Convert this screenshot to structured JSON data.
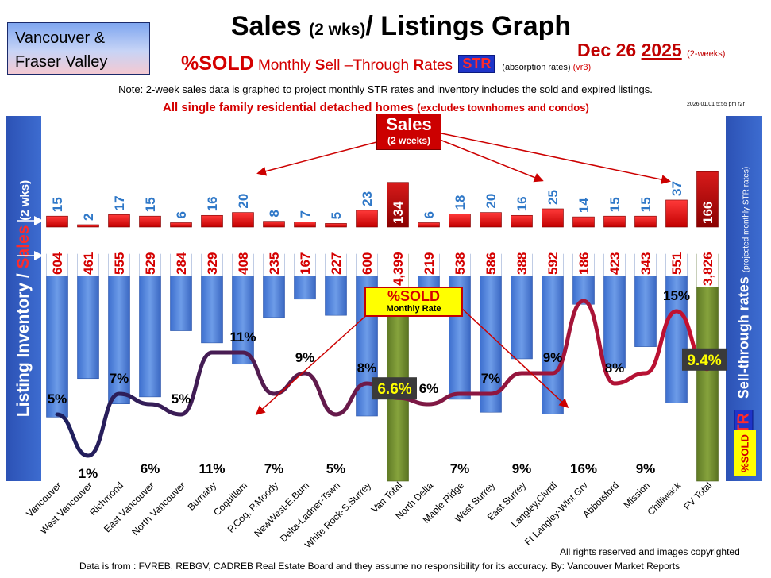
{
  "region": {
    "line1": "Vancouver &",
    "line2": "Fraser Valley"
  },
  "title": {
    "main": "Sales ",
    "period": "(2 wks)",
    "rest": "/ Listings Graph"
  },
  "subtitle": {
    "pct_sold": "%SOLD",
    "monthly": " Monthly ",
    "s": "S",
    "ell": "ell –",
    "t": "T",
    "hrough": "hrough ",
    "r": "R",
    "ates": "ates ",
    "str": "STR",
    "absorption": "(absorption rates)",
    "version": "(vr3)"
  },
  "date": {
    "main": "Dec 26 ",
    "year": "2025",
    "tag": "(2-weeks)"
  },
  "note": "Note: 2-week sales data is graphed to project monthly STR rates and inventory includes the sold and expired listings.",
  "headline": {
    "main": "All single family residential detached homes ",
    "sub": "(excludes townhomes and condos)"
  },
  "stamp": "2026.01.01 5:55 pm r2r",
  "left_axis": {
    "inventory": "Listing Inventory / ",
    "sales": "Sales",
    "period": "(2 wks)"
  },
  "right_axis": {
    "title": "Sell-through rates ",
    "sub": "(projected monthly STR rates)",
    "str": "STR",
    "sold": "%SOLD"
  },
  "sales_callout": {
    "big": "Sales",
    "small": "(2 weeks)"
  },
  "sold_callout": {
    "big": "%SOLD",
    "small": "Monthly Rate"
  },
  "copyright": "All rights reserved and  images copyrighted",
  "source": "Data is from : FVREB, REBGV, CADREB Real Estate Board and they assume no responsibility for its accuracy. By: Vancouver Market Reports",
  "colors": {
    "inventory_bar": "#4a7fd6",
    "total_bar": "#6f8a2e",
    "sales_bar": "#e00000",
    "sales_total_bar": "#b00000",
    "str_line_start": "#1c1f5e",
    "str_line_end": "#c8102e",
    "label_blue": "#2f78c8",
    "label_red": "#d40000"
  },
  "chart_data": {
    "type": "bar",
    "categories": [
      "Vancouver",
      "West Vancouver",
      "Richmond",
      "East Vancouver",
      "North Vancouver",
      "Burnaby",
      "Coquitlam",
      "P.Coq, P.Moody",
      "NewWest-E.Burn",
      "Delta-Ladner-Tswn",
      "White Rock-S.Surrey",
      "Van Total",
      "North Delta",
      "Maple Ridge",
      "West Surrey",
      "East Surrey",
      "Langley,Clvrdl",
      "Ft Langley-Wlnt Grv",
      "Abbotsford",
      "Mission",
      "Chilliwack",
      "FV Total"
    ],
    "series": [
      {
        "name": "Listing Inventory",
        "values": [
          604,
          461,
          555,
          529,
          284,
          329,
          408,
          235,
          167,
          227,
          600,
          4399,
          219,
          538,
          586,
          388,
          592,
          186,
          423,
          343,
          551,
          3826
        ],
        "labels": [
          "604",
          "461",
          "555",
          "529",
          "284",
          "329",
          "408",
          "235",
          "167",
          "227",
          "600",
          "4,399",
          "219",
          "538",
          "586",
          "388",
          "592",
          "186",
          "423",
          "343",
          "551",
          "3,826"
        ]
      },
      {
        "name": "Sales",
        "values": [
          15,
          2,
          17,
          15,
          6,
          16,
          20,
          8,
          7,
          5,
          23,
          134,
          6,
          18,
          20,
          16,
          25,
          14,
          15,
          15,
          37,
          166
        ]
      },
      {
        "name": "%SOLD",
        "values": [
          5,
          1,
          7,
          6,
          5,
          11,
          11,
          7,
          9,
          5,
          8,
          6.6,
          6,
          7,
          7,
          9,
          9,
          16,
          8,
          9,
          15,
          9.4
        ],
        "labels": [
          "5%",
          "1%",
          "7%",
          "6%",
          "5%",
          "11%",
          "11%",
          "7%",
          "9%",
          "5%",
          "8%",
          "6.6%",
          "6%",
          "7%",
          "7%",
          "9%",
          "9%",
          "16%",
          "8%",
          "9%",
          "15%",
          "9.4%"
        ]
      }
    ],
    "total_categories": [
      "Van Total",
      "FV Total"
    ]
  }
}
